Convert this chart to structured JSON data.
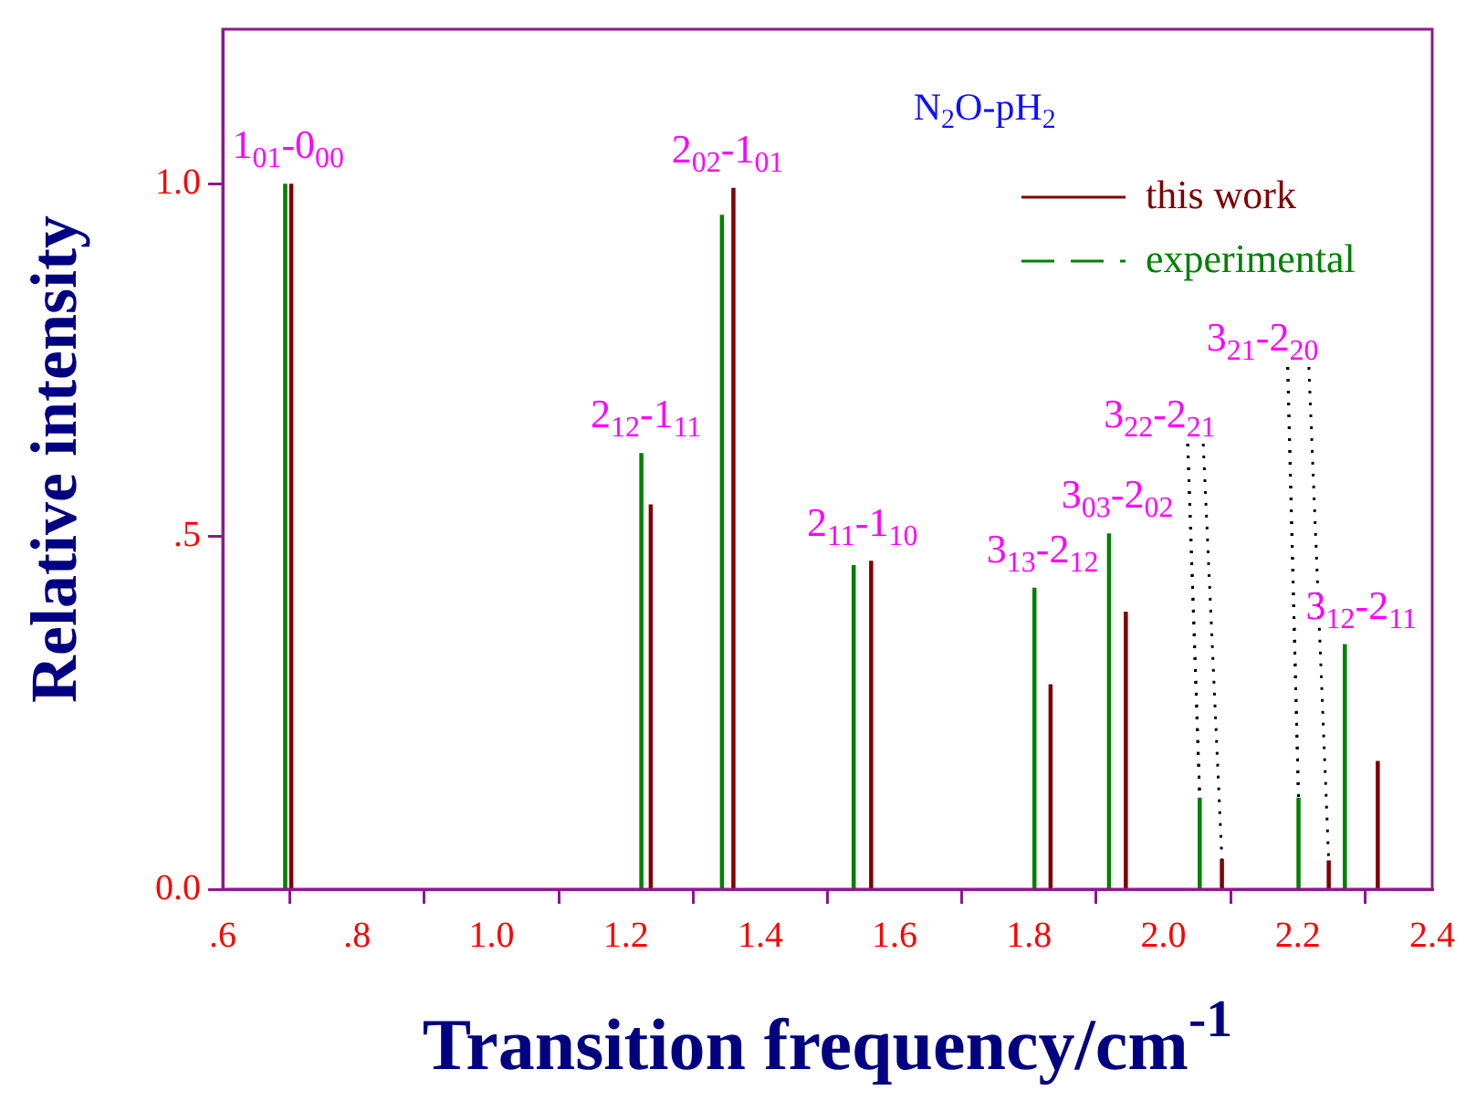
{
  "chart_data": {
    "type": "bar",
    "title": "N$_{2}$O-pH$_{2}$",
    "xlabel": "Transition frequency/cm$^{-1}$",
    "ylabel": "Relative intensity",
    "series": [
      {
        "name": "this work",
        "color": "#800000",
        "line_style": "solid",
        "x": [
          0.702,
          1.237,
          1.36,
          1.565,
          1.832,
          1.944,
          2.087,
          2.246,
          2.319
        ],
        "values": [
          1.0,
          0.545,
          0.994,
          0.465,
          0.29,
          0.393,
          0.042,
          0.04,
          0.181
        ]
      },
      {
        "name": "experimental",
        "color": "#008000",
        "line_style": "dashed",
        "x": [
          0.693,
          1.223,
          1.343,
          1.539,
          1.808,
          1.919,
          2.054,
          2.201,
          2.27
        ],
        "values": [
          1.0,
          0.618,
          0.956,
          0.459,
          0.427,
          0.504,
          0.129,
          0.129,
          0.347
        ]
      }
    ],
    "xlim": [
      0.6,
      2.4
    ],
    "xticks": [
      {
        "value": 0.6,
        "label": ".6"
      },
      {
        "value": 0.8,
        "label": ".8"
      },
      {
        "value": 1.0,
        "label": "1.0"
      },
      {
        "value": 1.2,
        "label": "1.2"
      },
      {
        "value": 1.4,
        "label": "1.4"
      },
      {
        "value": 1.6,
        "label": "1.6"
      },
      {
        "value": 1.8,
        "label": "1.8"
      },
      {
        "value": 2.0,
        "label": "2.0"
      },
      {
        "value": 2.2,
        "label": "2.2"
      },
      {
        "value": 2.4,
        "label": "2.4"
      }
    ],
    "ylim": [
      0,
      1.22
    ],
    "yticks": [
      {
        "value": 0,
        "label": "0.0"
      },
      {
        "value": 0.5,
        "label": ".5"
      },
      {
        "value": 1.0,
        "label": "1.0"
      }
    ],
    "grid": false,
    "legend": "top right",
    "annotations": [
      "1$_{01}$-0$_{00}$",
      "2$_{12}$-1$_{11}$",
      "2$_{02}$-1$_{01}$",
      "2$_{11}$-1$_{10}$",
      "3$_{13}$-2$_{12}$",
      "3$_{03}$-2$_{02}$",
      {
        "text": "3$_{22}$-2$_{21}$",
        "x": 2.054,
        "y": 0.129
      },
      {
        "text": "3$_{21}$-2$_{20}$",
        "x": 2.201,
        "y": 0.129
      },
      "3$_{12}$-2$_{11}$"
    ]
  }
}
